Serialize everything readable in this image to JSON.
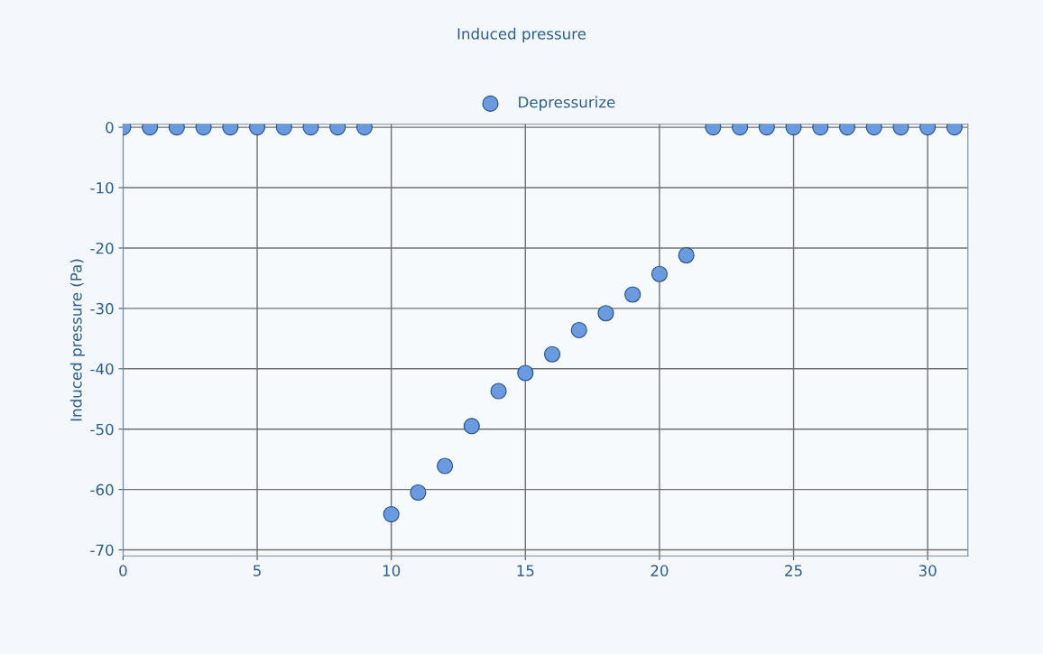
{
  "chart_data": {
    "type": "scatter",
    "title": "Induced pressure",
    "ylabel": "Induced pressure (Pa)",
    "x": [
      0,
      1,
      2,
      3,
      4,
      5,
      6,
      7,
      8,
      9,
      10,
      11,
      12,
      13,
      14,
      15,
      16,
      17,
      18,
      19,
      20,
      21,
      22,
      23,
      24,
      25,
      26,
      27,
      28,
      29,
      30,
      31
    ],
    "series": [
      {
        "name": "Depressurize",
        "color": "#6a9be0",
        "values": [
          0,
          0,
          0,
          0,
          0,
          0,
          0,
          0,
          0,
          0,
          -64.1,
          -60.5,
          -56.1,
          -49.5,
          -43.7,
          -40.7,
          -37.6,
          -33.6,
          -30.8,
          -27.7,
          -24.3,
          -21.2,
          0,
          0,
          0,
          0,
          0,
          0,
          0,
          0,
          0,
          0
        ]
      }
    ],
    "xlim": [
      0,
      31.5
    ],
    "xticks": [
      0,
      5,
      10,
      15,
      20,
      25,
      30
    ],
    "ylim": [
      -71,
      0.5
    ],
    "yticks": [
      0,
      -10,
      -20,
      -30,
      -40,
      -50,
      -60,
      -70
    ],
    "grid": true,
    "legend": "top",
    "marker": "circle"
  }
}
